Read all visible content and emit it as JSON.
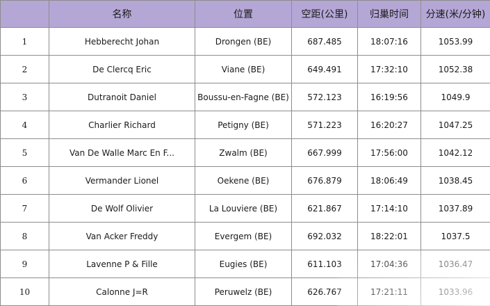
{
  "table": {
    "headers": [
      "",
      "名称",
      "位置",
      "空距(公里)",
      "归巢时间",
      "分速(米/分钟)"
    ],
    "rows": [
      {
        "rank": "1",
        "name": "Hebberecht Johan",
        "location": "Drongen (BE)",
        "distance": "687.485",
        "time": "18:07:16",
        "speed": "1053.99"
      },
      {
        "rank": "2",
        "name": "De Clercq Eric",
        "location": "Viane (BE)",
        "distance": "649.491",
        "time": "17:32:10",
        "speed": "1052.38"
      },
      {
        "rank": "3",
        "name": "Dutranoit Daniel",
        "location": "Boussu-en-Fagne (BE)",
        "distance": "572.123",
        "time": "16:19:56",
        "speed": "1049.9"
      },
      {
        "rank": "4",
        "name": "Charlier Richard",
        "location": "Petigny (BE)",
        "distance": "571.223",
        "time": "16:20:27",
        "speed": "1047.25"
      },
      {
        "rank": "5",
        "name": "Van De Walle Marc En F...",
        "location": "Zwalm (BE)",
        "distance": "667.999",
        "time": "17:56:00",
        "speed": "1042.12"
      },
      {
        "rank": "6",
        "name": "Vermander Lionel",
        "location": "Oekene (BE)",
        "distance": "676.879",
        "time": "18:06:49",
        "speed": "1038.45"
      },
      {
        "rank": "7",
        "name": "De Wolf Olivier",
        "location": "La Louviere (BE)",
        "distance": "621.867",
        "time": "17:14:10",
        "speed": "1037.89"
      },
      {
        "rank": "8",
        "name": "Van Acker Freddy",
        "location": "Evergem (BE)",
        "distance": "692.032",
        "time": "18:22:01",
        "speed": "1037.5"
      },
      {
        "rank": "9",
        "name": "Lavenne P & Fille",
        "location": "Eugies (BE)",
        "distance": "611.103",
        "time": "17:04:36",
        "speed": "1036.47"
      },
      {
        "rank": "10",
        "name": "Calonne J=R",
        "location": "Peruwelz (BE)",
        "distance": "626.767",
        "time": "17:21:11",
        "speed": "1033.96"
      }
    ]
  },
  "colors": {
    "header_bg": "#b4a7d6",
    "border": "#8c8c8c"
  }
}
